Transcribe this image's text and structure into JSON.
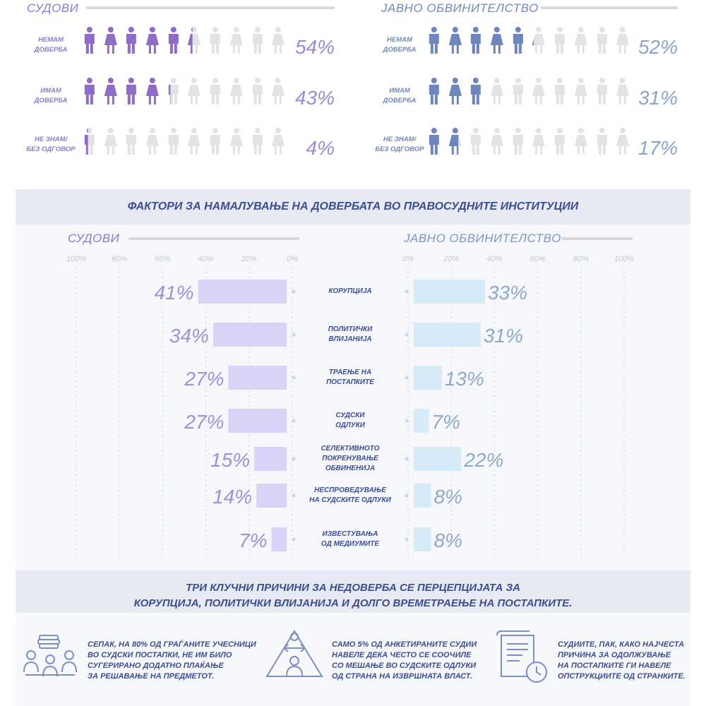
{
  "trust": {
    "courts": {
      "title": "СУДОВИ",
      "rows": [
        {
          "label": "НЕМАМ\nДОВЕРБА",
          "percent": 54,
          "value_label": "54%"
        },
        {
          "label": "ИМАМ\nДОВЕРБА",
          "percent": 43,
          "value_label": "43%"
        },
        {
          "label": "НЕ ЗНАМ/\nБЕЗ ОДГОВОР",
          "percent": 4,
          "value_label": "4%"
        }
      ]
    },
    "prosecution": {
      "title": "ЈАВНО ОБВИНИТЕЛСТВО",
      "rows": [
        {
          "label": "НЕМАМ\nДОВЕРБА",
          "percent": 52,
          "value_label": "52%"
        },
        {
          "label": "ИМАМ\nДОВЕРБА",
          "percent": 31,
          "value_label": "31%"
        },
        {
          "label": "НЕ ЗНАМ/\nБЕЗ ОДГОВОР",
          "percent": 17,
          "value_label": "17%"
        }
      ]
    }
  },
  "factors_banner": "ФАКТОРИ ЗА НАМАЛУВАЊЕ НА ДОВЕРБАТА ВО ПРАВОСУДНИТЕ ИНСТИТУЦИИ",
  "chart_data": {
    "type": "bar",
    "orientation": "horizontal-diverging",
    "categories": [
      "КОРУПЦИЈА",
      "ПОЛИТИЧКИ\nВЛИЈАНИЈА",
      "ТРАЕЊЕ НА\nПОСТАПКИТЕ",
      "СУДСКИ\nОДЛУКИ",
      "СЕЛЕКТИВНОТО\nПОКРЕНУВАЊЕ\nОБВИНЕНИЈА",
      "НЕСПРОВЕДУВАЊЕ\nНА СУДСКИТЕ ОДЛУКИ",
      "ИЗВЕСТУВАЊА\nОД МЕДИУМИТЕ"
    ],
    "series": [
      {
        "name": "СУДОВИ",
        "values": [
          41,
          34,
          27,
          27,
          15,
          14,
          7
        ],
        "labels": [
          "41%",
          "34%",
          "27%",
          "27%",
          "15%",
          "14%",
          "7%"
        ],
        "color": "#d9d4f7",
        "label_color": "#9f8fd6"
      },
      {
        "name": "ЈАВНО ОБВИНИТЕЛСТВО",
        "values": [
          33,
          31,
          13,
          7,
          22,
          8,
          8
        ],
        "labels": [
          "33%",
          "31%",
          "13%",
          "7%",
          "22%",
          "8%",
          "8%"
        ],
        "color": "#d6eaf8",
        "label_color": "#8fa8c8"
      }
    ],
    "ticks": [
      "0%",
      "20%",
      "40%",
      "60%",
      "80%",
      "100%"
    ],
    "xlim": [
      0,
      100
    ]
  },
  "conclusion": "ТРИ КЛУЧНИ ПРИЧИНИ ЗА НЕДОВЕРБА СЕ ПЕРЦЕПЦИЈАТА ЗА\nКОРУПЦИЈА, ПОЛИТИЧКИ ВЛИЈАНИЈА И ДОЛГО ВРЕМЕТРАЕЊЕ НА ПОСТАПКИТЕ.",
  "facts": [
    {
      "icon": "money-meeting-icon",
      "text": "СЕПАК, НА 80% ОД ГРАЃАНИТЕ УЧЕСНИЦИ\nВО СУДСКИ ПОСТАПКИ, НЕ ИМ БИЛО\nСУГЕРИРАНО ДОДАТНО ПЛАЌАЊЕ\nЗА РЕШАВАЊЕ НА ПРЕДМЕТОТ."
    },
    {
      "icon": "pressure-triangle-icon",
      "text": "САМО 5% ОД АНКЕТИРАНИТЕ СУДИИ\nНАВЕЛЕ ДЕКА ЧЕСТО СЕ СООЧИЛЕ\nСО МЕШАЊЕ ВО СУДСКИТЕ ОДЛУКИ\nОД СТРАНА НА ИЗВРШНАТА ВЛАСТ."
    },
    {
      "icon": "document-clock-icon",
      "text": "СУДИИТЕ, ПАК, КАКО НАЈЧЕСТА\nПРИЧИНА ЗА ОДОЛЖУВАЊЕ\nНА ПОСТАПКИТЕ ГИ НАВЕЛЕ\nОПСТРУКЦИИТЕ ОД СТРАНКИТЕ."
    }
  ],
  "colors": {
    "courts_fill": "#8f6cc6",
    "prosecution_fill": "#6f86bd",
    "empty_fill": "#e3e3e3",
    "courts_pct": "#9d89d2",
    "prosecution_pct": "#8aa6c4"
  }
}
